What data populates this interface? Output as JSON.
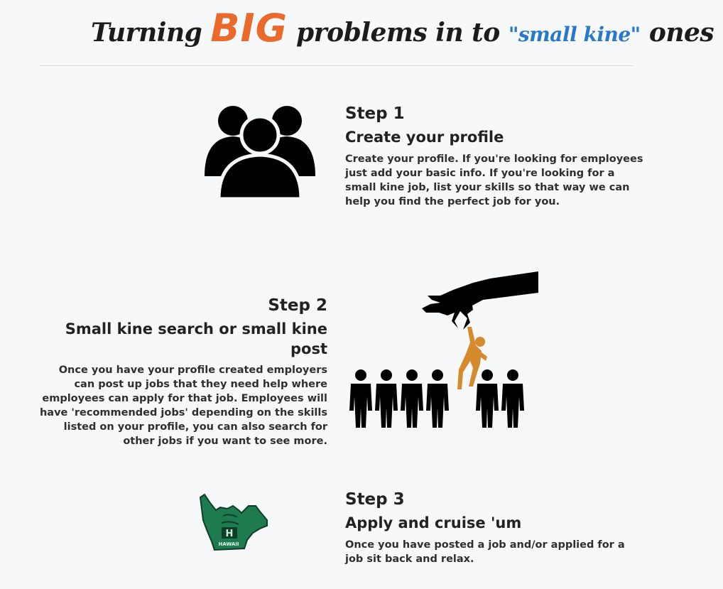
{
  "header": {
    "title_part1": "Turning ",
    "title_big": "BIG",
    "title_part2": " problems in to ",
    "title_small": "\"small kine\"",
    "title_part3": " ones"
  },
  "steps": [
    {
      "number": "Step 1",
      "subtitle": "Create your profile",
      "text": "Create your profile. If you're looking for employees just add your basic info. If you're looking for a small kine job, list your skills so that way we can help you find the perfect job for you.",
      "icon": "group-people-icon"
    },
    {
      "number": "Step 2",
      "subtitle": "Small kine search or small kine post",
      "text": "Once you have your profile created employers can post up jobs that they need help where employees can apply for that job. Employees will have 'recommended jobs' depending on the skills listed on your profile, you can also search for other jobs if you want to see more.",
      "icon": "hand-picking-person-icon"
    },
    {
      "number": "Step 3",
      "subtitle": "Apply and cruise 'um",
      "text": "Once you have posted a job and/or applied for a job sit back and relax.",
      "icon": "shaka-hand-icon",
      "image_text": "HAWAII"
    }
  ],
  "colors": {
    "accent_orange": "#ea6a2b",
    "accent_blue": "#2a79c7",
    "figure_orange": "#d58a2e",
    "foam_green": "#1e7a4f",
    "background": "#f7f8f9"
  }
}
